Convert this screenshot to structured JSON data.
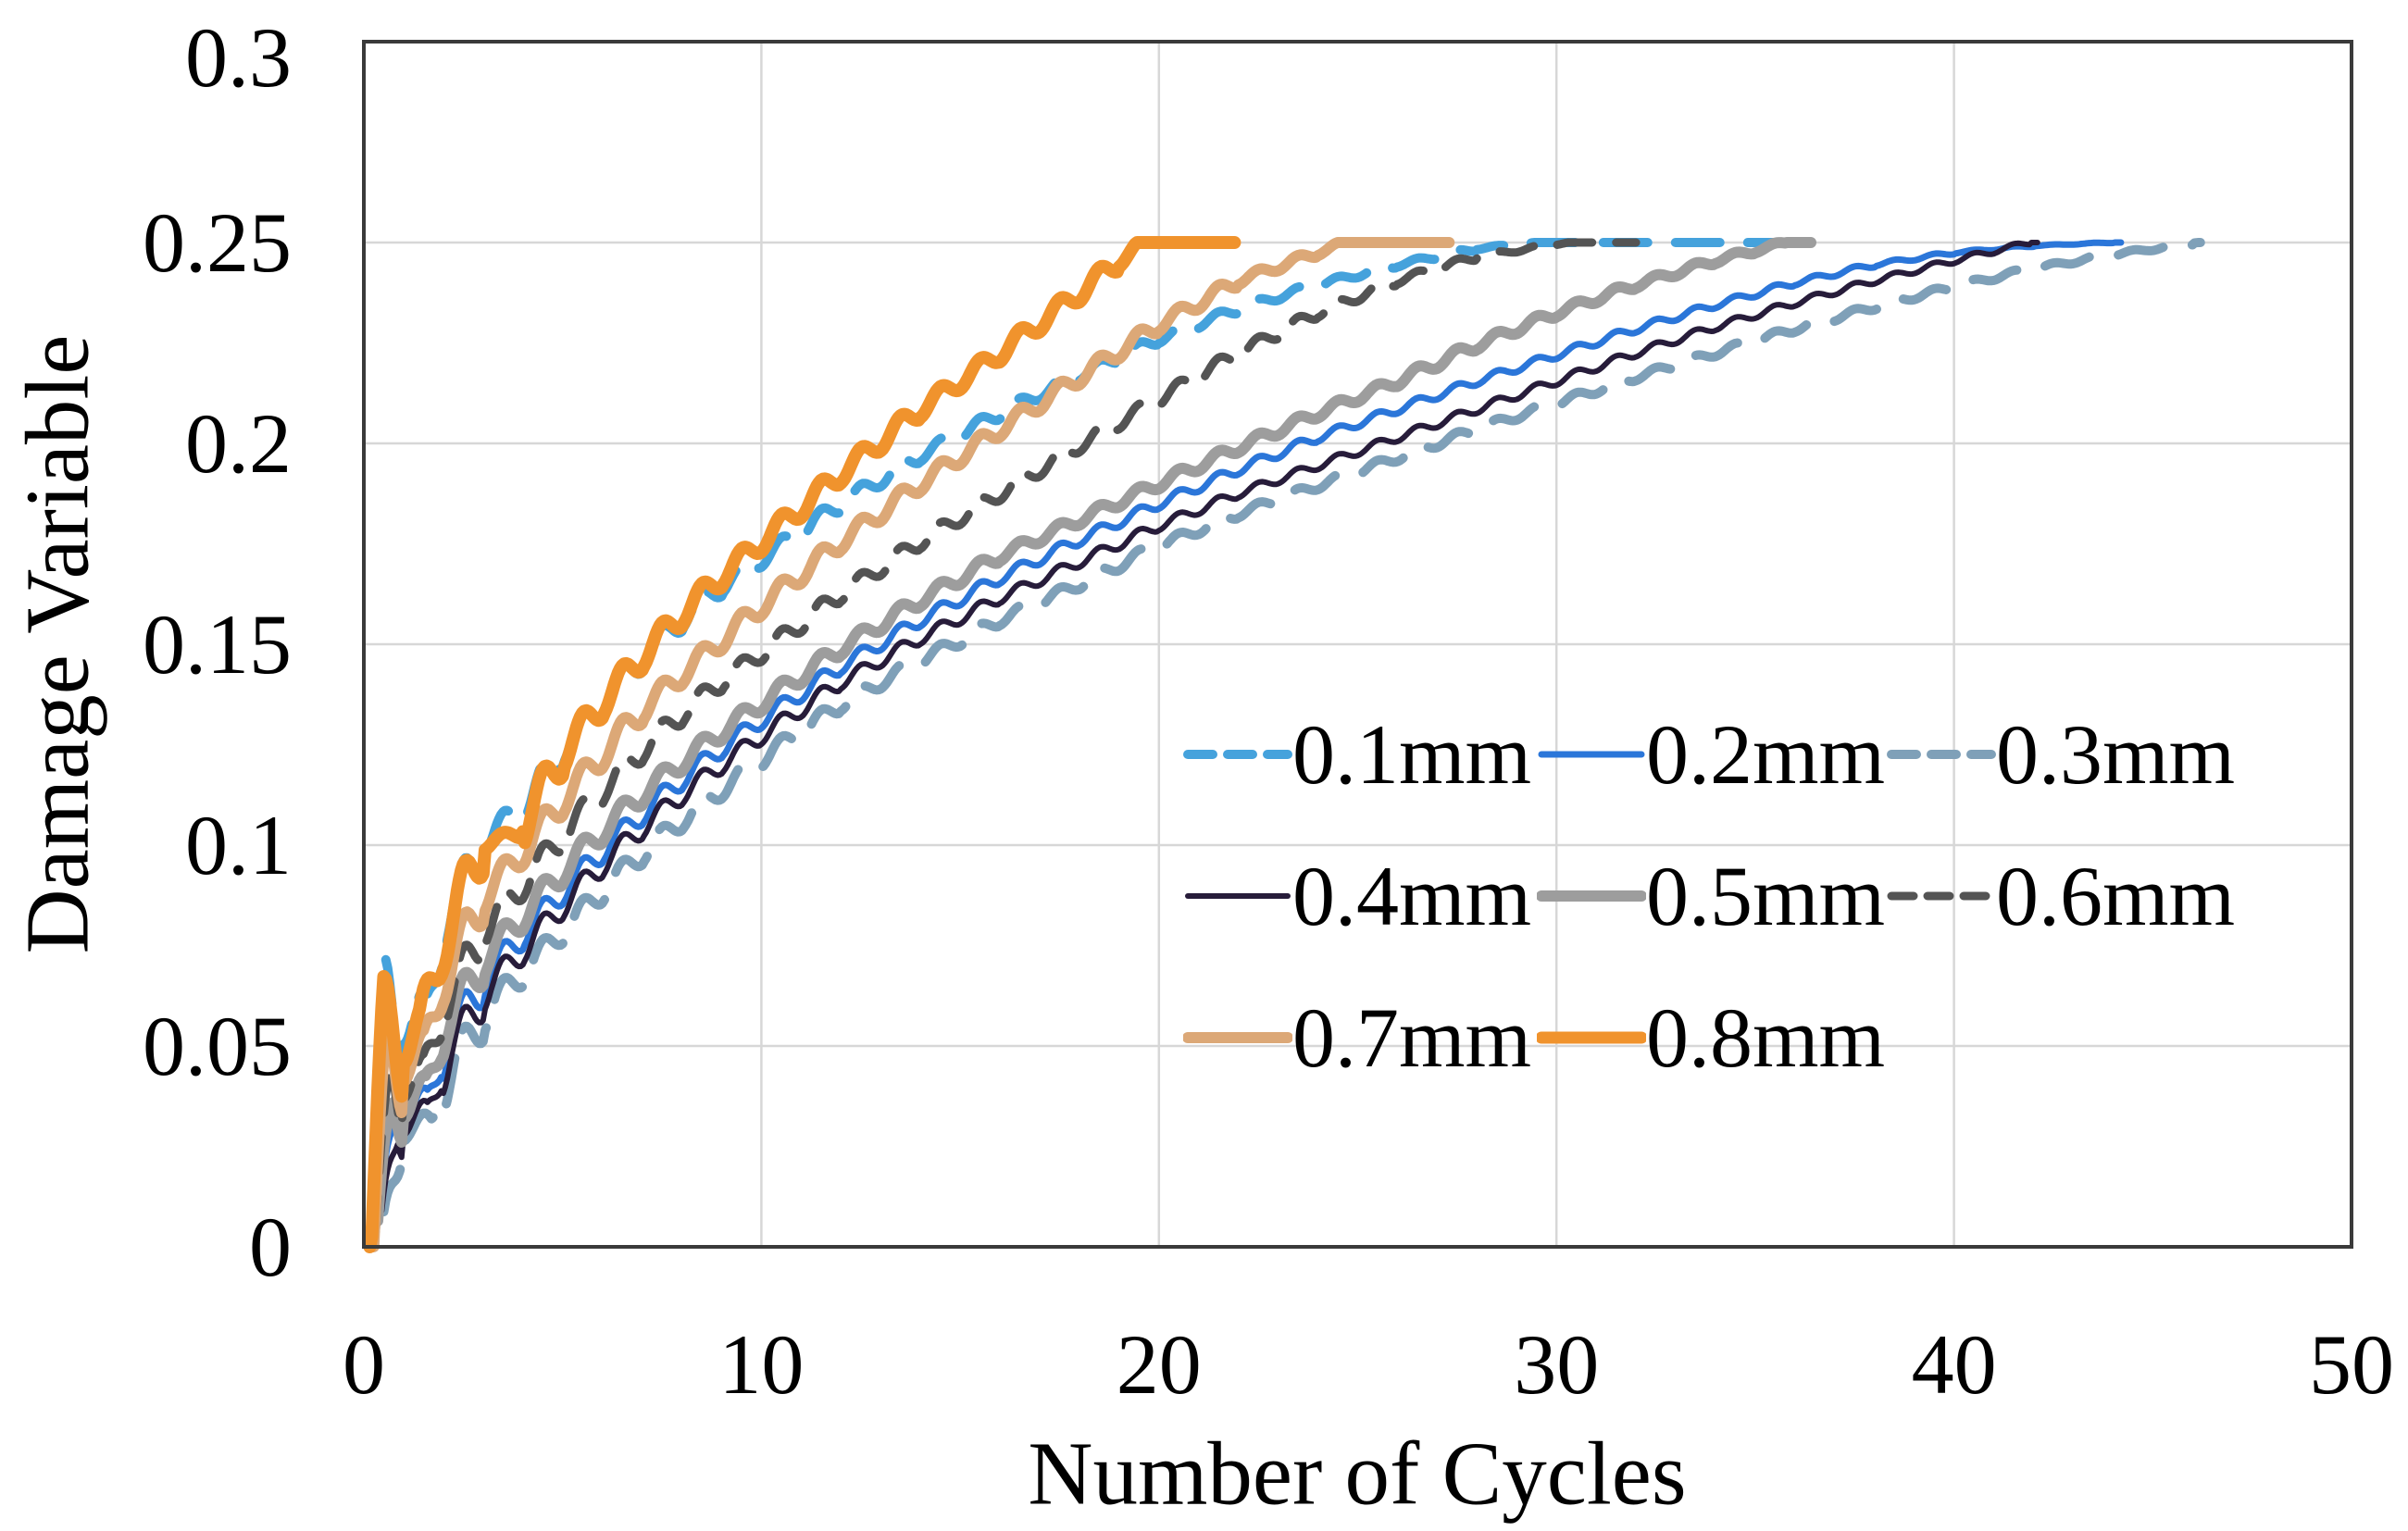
{
  "styles": {
    "background": "#FFFFFF",
    "grid_color": "#D7D7D7",
    "border_color": "#3A3A3A",
    "text_color": "#000000"
  },
  "chart_data": {
    "type": "line",
    "title": "",
    "xlabel": "Number of Cycles",
    "ylabel": "Damage Variable",
    "xlim": [
      0,
      50
    ],
    "ylim": [
      0,
      0.3
    ],
    "x_ticks": [
      0,
      10,
      20,
      30,
      40,
      50
    ],
    "x_tick_labels": [
      "0",
      "10",
      "20",
      "30",
      "40",
      "50"
    ],
    "y_ticks": [
      0,
      0.05,
      0.1,
      0.15,
      0.2,
      0.25,
      0.3
    ],
    "y_tick_labels": [
      "0",
      "0.05",
      "0.1",
      "0.15",
      "0.2",
      "0.25",
      "0.3"
    ],
    "grid": true,
    "legend_position": "inside-lower-right",
    "damage_cap": 0.25,
    "ripple": {
      "period": 1,
      "amplitude_factor": 0.3
    },
    "series": [
      {
        "name": "0.1mm",
        "color": "#45A2DC",
        "style": "dashed",
        "width": 10,
        "dash": [
          48,
          30
        ],
        "legend_dash": [
          27,
          16
        ],
        "cap": 0.25,
        "flat_to": 35.8,
        "anchors": [
          [
            0.2,
            0
          ],
          [
            0.55,
            0.0555
          ],
          [
            1.6,
            0.058
          ],
          [
            2.1,
            0.082
          ],
          [
            3.1,
            0.101
          ],
          [
            4.2,
            0.112
          ],
          [
            5.2,
            0.1265
          ],
          [
            6.2,
            0.1375
          ],
          [
            7.2,
            0.1485
          ],
          [
            8.2,
            0.158
          ],
          [
            9.2,
            0.166
          ],
          [
            10.2,
            0.1725
          ],
          [
            12,
            0.185
          ],
          [
            14,
            0.197
          ],
          [
            16,
            0.2075
          ],
          [
            18,
            0.217
          ],
          [
            20,
            0.226
          ],
          [
            22,
            0.2335
          ],
          [
            24,
            0.2395
          ],
          [
            26,
            0.2445
          ],
          [
            28,
            0.2485
          ],
          [
            29.6,
            0.25
          ]
        ]
      },
      {
        "name": "0.2mm",
        "color": "#2B76D9",
        "style": "solid",
        "width": 7,
        "dash": null,
        "legend_dash": null,
        "cap": 0.25,
        "flat_to": 44.2,
        "anchors": [
          [
            0.4,
            0
          ],
          [
            0.8,
            0.034
          ],
          [
            1.6,
            0.036
          ],
          [
            2.2,
            0.053
          ],
          [
            3.2,
            0.0685
          ],
          [
            4.2,
            0.08
          ],
          [
            5.2,
            0.0905
          ],
          [
            6.2,
            0.1005
          ],
          [
            7.2,
            0.1095
          ],
          [
            8.2,
            0.118
          ],
          [
            9.2,
            0.1255
          ],
          [
            10.2,
            0.1325
          ],
          [
            12,
            0.1445
          ],
          [
            14,
            0.156
          ],
          [
            16,
            0.1665
          ],
          [
            18,
            0.176
          ],
          [
            20,
            0.185
          ],
          [
            22,
            0.1935
          ],
          [
            24,
            0.2015
          ],
          [
            26,
            0.2085
          ],
          [
            28,
            0.2155
          ],
          [
            30,
            0.222
          ],
          [
            32,
            0.2285
          ],
          [
            34,
            0.2345
          ],
          [
            36,
            0.24
          ],
          [
            38,
            0.2445
          ],
          [
            40,
            0.2475
          ],
          [
            42,
            0.2492
          ],
          [
            44,
            0.25
          ]
        ]
      },
      {
        "name": "0.3mm",
        "color": "#7FA0B8",
        "style": "dashed",
        "width": 10,
        "dash": [
          50,
          32
        ],
        "legend_dash": [
          27,
          16
        ],
        "cap": 0.25,
        "flat_to": 46.2,
        "anchors": [
          [
            0.5,
            0
          ],
          [
            0.95,
            0.029
          ],
          [
            1.7,
            0.031
          ],
          [
            2.3,
            0.046
          ],
          [
            3.3,
            0.061
          ],
          [
            4.3,
            0.0715
          ],
          [
            5.3,
            0.0815
          ],
          [
            6.3,
            0.0915
          ],
          [
            7.3,
            0.1005
          ],
          [
            8.3,
            0.1085
          ],
          [
            9.3,
            0.116
          ],
          [
            10.3,
            0.1235
          ],
          [
            12,
            0.135
          ],
          [
            14,
            0.146
          ],
          [
            16,
            0.156
          ],
          [
            18,
            0.165
          ],
          [
            20,
            0.1745
          ],
          [
            22,
            0.1825
          ],
          [
            24,
            0.1895
          ],
          [
            26,
            0.1965
          ],
          [
            28,
            0.2035
          ],
          [
            30,
            0.21
          ],
          [
            32,
            0.2165
          ],
          [
            34,
            0.2225
          ],
          [
            36,
            0.2285
          ],
          [
            38,
            0.234
          ],
          [
            40,
            0.239
          ],
          [
            42,
            0.2435
          ],
          [
            44,
            0.247
          ],
          [
            46.1,
            0.25
          ]
        ]
      },
      {
        "name": "0.4mm",
        "color": "#271C3A",
        "style": "solid",
        "width": 6,
        "dash": null,
        "legend_dash": null,
        "cap": 0.25,
        "flat_to": 42.1,
        "anchors": [
          [
            0.45,
            0
          ],
          [
            0.85,
            0.031
          ],
          [
            1.6,
            0.033
          ],
          [
            2.2,
            0.049
          ],
          [
            3.2,
            0.065
          ],
          [
            4.2,
            0.076
          ],
          [
            5.2,
            0.087
          ],
          [
            6.2,
            0.097
          ],
          [
            7.2,
            0.106
          ],
          [
            8.2,
            0.114
          ],
          [
            9.2,
            0.1215
          ],
          [
            10.2,
            0.1285
          ],
          [
            12,
            0.1405
          ],
          [
            14,
            0.1515
          ],
          [
            16,
            0.1615
          ],
          [
            18,
            0.1705
          ],
          [
            20,
            0.1795
          ],
          [
            22,
            0.1875
          ],
          [
            24,
            0.1945
          ],
          [
            26,
            0.2015
          ],
          [
            28,
            0.2085
          ],
          [
            30,
            0.2155
          ],
          [
            32,
            0.2225
          ],
          [
            34,
            0.229
          ],
          [
            36,
            0.235
          ],
          [
            38,
            0.2405
          ],
          [
            40,
            0.2455
          ],
          [
            41.9,
            0.25
          ]
        ]
      },
      {
        "name": "0.5mm",
        "color": "#9D9D9D",
        "style": "solid",
        "width": 12,
        "dash": null,
        "legend_dash": null,
        "cap": 0.25,
        "flat_to": 36.4,
        "anchors": [
          [
            0.35,
            0
          ],
          [
            0.75,
            0.036
          ],
          [
            1.55,
            0.038
          ],
          [
            2.1,
            0.056
          ],
          [
            3.1,
            0.072
          ],
          [
            4.1,
            0.0835
          ],
          [
            5.1,
            0.0945
          ],
          [
            6.1,
            0.1045
          ],
          [
            7.1,
            0.1135
          ],
          [
            8.1,
            0.1215
          ],
          [
            9.1,
            0.129
          ],
          [
            10.1,
            0.136
          ],
          [
            12,
            0.149
          ],
          [
            14,
            0.161
          ],
          [
            16,
            0.172
          ],
          [
            18,
            0.181
          ],
          [
            20,
            0.19
          ],
          [
            22,
            0.199
          ],
          [
            24,
            0.2075
          ],
          [
            26,
            0.2155
          ],
          [
            28,
            0.2245
          ],
          [
            30,
            0.2325
          ],
          [
            32,
            0.2395
          ],
          [
            34,
            0.2455
          ],
          [
            35.8,
            0.25
          ]
        ]
      },
      {
        "name": "0.6mm",
        "color": "#545454",
        "style": "dashed",
        "width": 9,
        "dash": [
          38,
          26
        ],
        "legend_dash": [
          24,
          15
        ],
        "cap": 0.25,
        "flat_to": 32.0,
        "anchors": [
          [
            0.3,
            0
          ],
          [
            0.7,
            0.041
          ],
          [
            1.5,
            0.043
          ],
          [
            2.1,
            0.0615
          ],
          [
            3.1,
            0.0795
          ],
          [
            4.1,
            0.0915
          ],
          [
            5.1,
            0.1035
          ],
          [
            6.1,
            0.1145
          ],
          [
            7.1,
            0.1245
          ],
          [
            8.1,
            0.1335
          ],
          [
            9.1,
            0.1415
          ],
          [
            10.1,
            0.1485
          ],
          [
            12,
            0.1625
          ],
          [
            14,
            0.1755
          ],
          [
            16,
            0.1875
          ],
          [
            18,
            0.1995
          ],
          [
            20,
            0.211
          ],
          [
            22,
            0.2225
          ],
          [
            24,
            0.2325
          ],
          [
            26,
            0.2405
          ],
          [
            28,
            0.2465
          ],
          [
            30.3,
            0.25
          ]
        ]
      },
      {
        "name": "0.7mm",
        "color": "#DCA877",
        "style": "solid",
        "width": 12,
        "dash": null,
        "legend_dash": null,
        "cap": 0.25,
        "flat_to": 27.3,
        "anchors": [
          [
            0.25,
            0
          ],
          [
            0.6,
            0.046
          ],
          [
            1.5,
            0.048
          ],
          [
            2,
            0.0665
          ],
          [
            3,
            0.0865
          ],
          [
            4,
            0.0985
          ],
          [
            5,
            0.111
          ],
          [
            6,
            0.1225
          ],
          [
            7,
            0.1335
          ],
          [
            8,
            0.1425
          ],
          [
            9,
            0.151
          ],
          [
            10,
            0.1595
          ],
          [
            12,
            0.1755
          ],
          [
            14,
            0.19
          ],
          [
            16,
            0.2035
          ],
          [
            18,
            0.2165
          ],
          [
            20,
            0.2295
          ],
          [
            22,
            0.2405
          ],
          [
            24,
            0.2475
          ],
          [
            24.7,
            0.25
          ]
        ]
      },
      {
        "name": "0.8mm",
        "color": "#F0932D",
        "style": "solid",
        "width": 14,
        "dash": null,
        "legend_dash": null,
        "cap": 0.25,
        "flat_to": 21.9,
        "anchors": [
          [
            0.15,
            0
          ],
          [
            0.5,
            0.0515
          ],
          [
            1.4,
            0.0535
          ],
          [
            2,
            0.076
          ],
          [
            3,
            0.1
          ],
          [
            3.9,
            0.103
          ],
          [
            5,
            0.1225
          ],
          [
            6,
            0.1355
          ],
          [
            7,
            0.147
          ],
          [
            8,
            0.1575
          ],
          [
            9,
            0.167
          ],
          [
            10,
            0.1755
          ],
          [
            12,
            0.1925
          ],
          [
            14,
            0.2085
          ],
          [
            16,
            0.2225
          ],
          [
            18,
            0.2375
          ],
          [
            19.6,
            0.25
          ]
        ]
      }
    ]
  }
}
